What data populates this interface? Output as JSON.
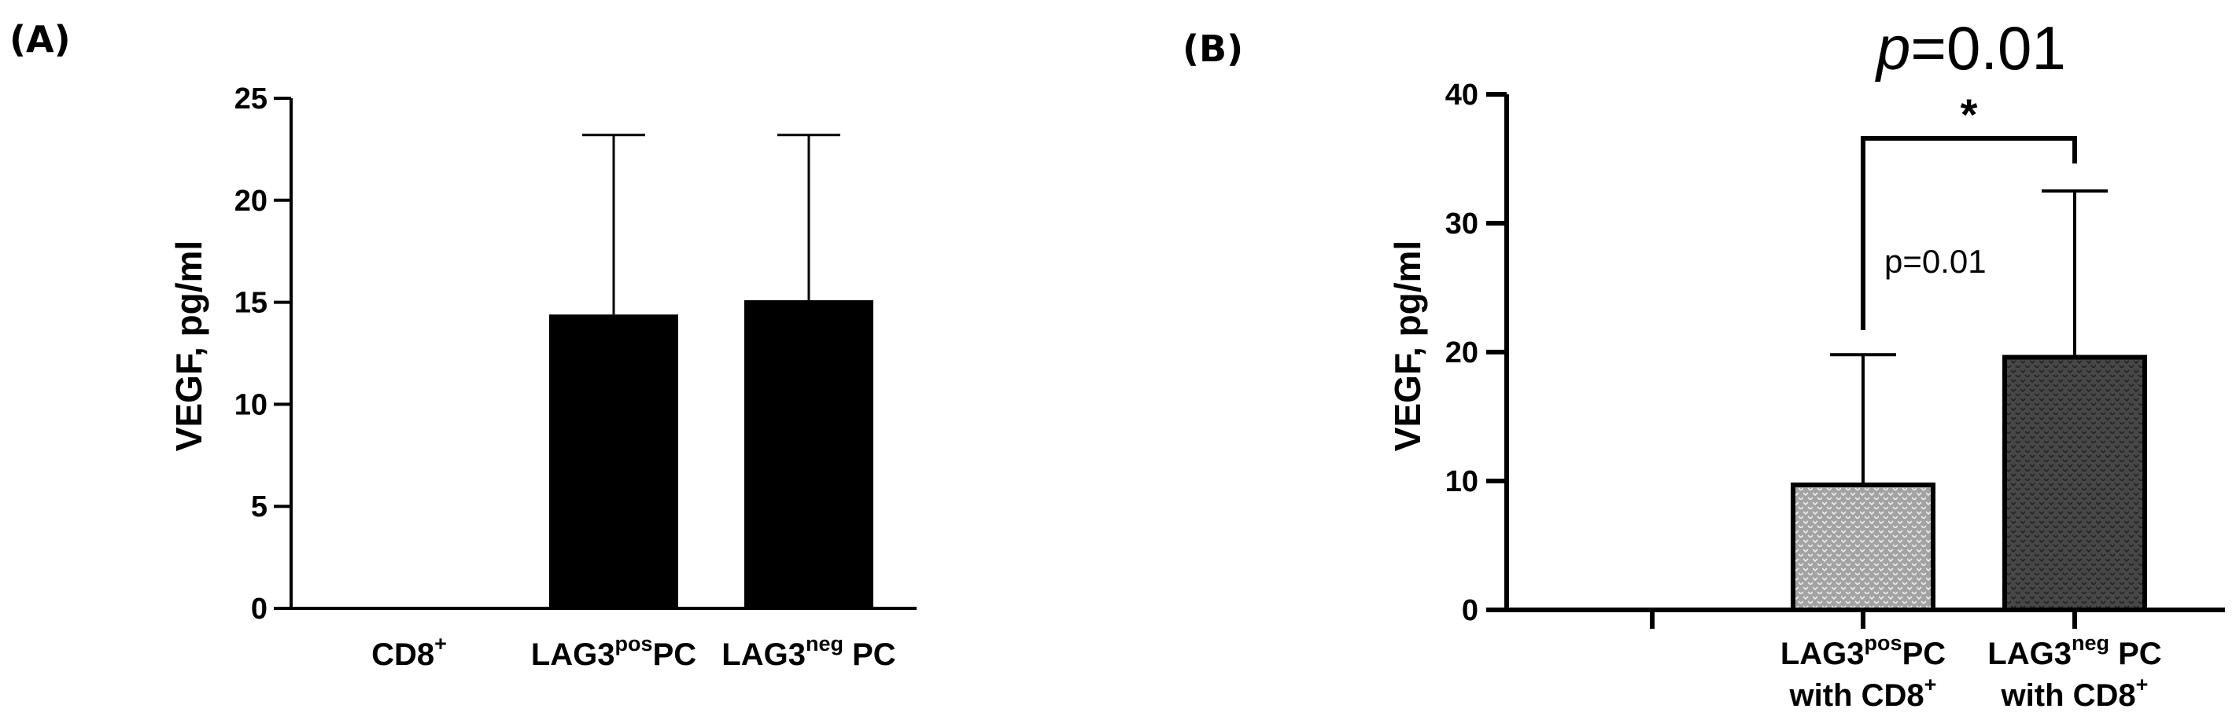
{
  "panels": {
    "a": {
      "label": "(A)"
    },
    "b": {
      "label": "(B)"
    }
  },
  "chart_data": [
    {
      "type": "bar",
      "panel_label": "(A)",
      "ylabel": "VEGF, pg/ml",
      "ylim": [
        0,
        25
      ],
      "yticks": [
        "0",
        "5",
        "10",
        "15",
        "20",
        "25"
      ],
      "categories": [
        {
          "main": "CD8",
          "sup": "+",
          "tail": ""
        },
        {
          "main": "LAG3",
          "sup": "pos",
          "tail": "PC"
        },
        {
          "main": "LAG3",
          "sup": "neg",
          "tail": " PC"
        }
      ],
      "values": [
        0,
        14.4,
        15.1
      ],
      "error_upper": [
        0,
        23.2,
        23.2
      ],
      "bar_fill": "#000000"
    },
    {
      "type": "bar",
      "panel_label": "(B)",
      "ylabel": "VEGF, pg/ml",
      "ylim": [
        0,
        40
      ],
      "yticks": [
        "0",
        "10",
        "20",
        "30",
        "40"
      ],
      "categories": [
        {
          "line1_main": "LAG3",
          "line1_sup": "pos",
          "line1_tail": "PC",
          "line2_main": "with CD8",
          "line2_sup": "+"
        },
        {
          "line1_main": "LAG3",
          "line1_sup": "neg",
          "line1_tail": " PC",
          "line2_main": "with CD8",
          "line2_sup": "+"
        }
      ],
      "values": [
        9.7,
        19.6
      ],
      "error_upper": [
        19.8,
        32.5
      ],
      "bar_fills": [
        "#a3a3a3",
        "#474747"
      ],
      "annotations": {
        "title_p": "p",
        "title_value": "=0.01",
        "star": "*",
        "inline_p": "p=0.01"
      }
    }
  ]
}
